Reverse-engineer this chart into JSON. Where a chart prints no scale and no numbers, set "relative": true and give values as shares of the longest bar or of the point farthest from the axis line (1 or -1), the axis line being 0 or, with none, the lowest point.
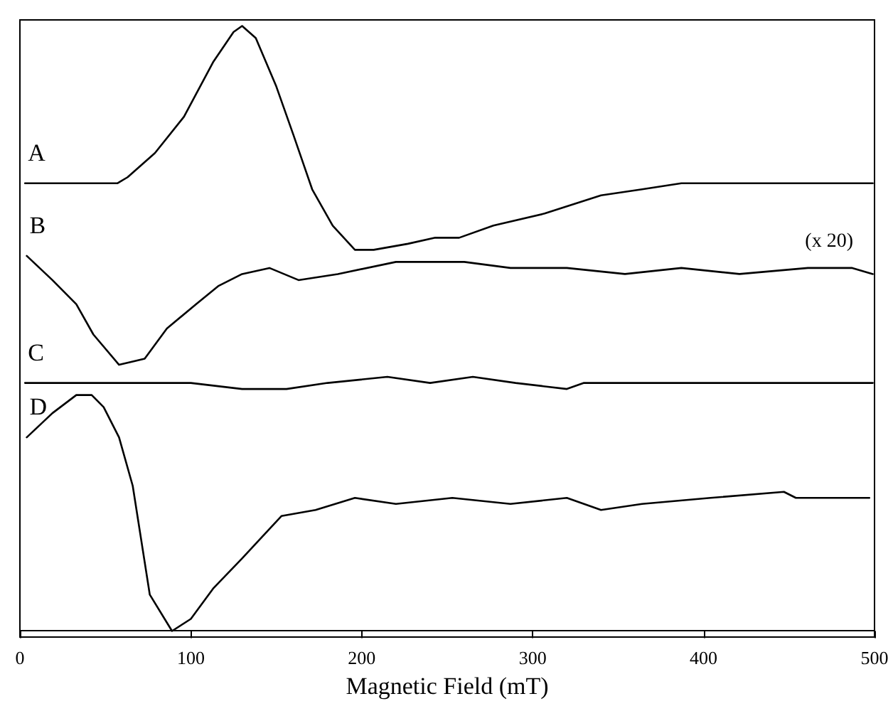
{
  "chart_data": {
    "type": "line",
    "xlabel": "Magnetic Field (mT)",
    "relative": true,
    "xlim": [
      0,
      500
    ],
    "xticks": [
      0,
      100,
      200,
      300,
      400,
      500
    ],
    "grid": false,
    "legend": false,
    "marker": "none",
    "line_style": "solid",
    "annotations": [
      "(x 20)"
    ],
    "series": [
      {
        "name": "A",
        "color": "#000000",
        "x": [
          3,
          57,
          63,
          79,
          96,
          113,
          125,
          130,
          138,
          150,
          160,
          171,
          183,
          196,
          207,
          227,
          243,
          257,
          277,
          307,
          340,
          364,
          387,
          421,
          499
        ],
        "values": [
          0.74,
          0.74,
          0.75,
          0.79,
          0.85,
          0.94,
          0.99,
          1.0,
          0.98,
          0.9,
          0.82,
          0.73,
          0.67,
          0.63,
          0.63,
          0.64,
          0.65,
          0.65,
          0.67,
          0.69,
          0.72,
          0.73,
          0.74,
          0.74,
          0.74
        ]
      },
      {
        "name": "B",
        "color": "#000000",
        "x": [
          4,
          19,
          33,
          43,
          58,
          73,
          86,
          103,
          116,
          130,
          146,
          163,
          186,
          220,
          260,
          287,
          320,
          354,
          387,
          421,
          461,
          487,
          499
        ],
        "values": [
          0.62,
          0.58,
          0.54,
          0.49,
          0.44,
          0.45,
          0.5,
          0.54,
          0.57,
          0.59,
          0.6,
          0.58,
          0.59,
          0.61,
          0.61,
          0.6,
          0.6,
          0.59,
          0.6,
          0.59,
          0.6,
          0.6,
          0.59
        ]
      },
      {
        "name": "C",
        "color": "#000000",
        "x": [
          3,
          60,
          100,
          130,
          156,
          180,
          215,
          240,
          265,
          290,
          320,
          330,
          360,
          410,
          460,
          499
        ],
        "values": [
          0.41,
          0.41,
          0.41,
          0.4,
          0.4,
          0.41,
          0.42,
          0.41,
          0.42,
          0.41,
          0.4,
          0.41,
          0.41,
          0.41,
          0.41,
          0.41
        ]
      },
      {
        "name": "D",
        "color": "#000000",
        "x": [
          4,
          19,
          33,
          42,
          49,
          58,
          66,
          76,
          89,
          100,
          113,
          130,
          153,
          173,
          196,
          220,
          253,
          287,
          320,
          340,
          364,
          404,
          447,
          454,
          497
        ],
        "values": [
          0.32,
          0.36,
          0.39,
          0.39,
          0.37,
          0.32,
          0.24,
          0.06,
          0.0,
          0.02,
          0.07,
          0.12,
          0.19,
          0.2,
          0.22,
          0.21,
          0.22,
          0.21,
          0.22,
          0.2,
          0.21,
          0.22,
          0.23,
          0.22,
          0.22
        ]
      }
    ]
  }
}
